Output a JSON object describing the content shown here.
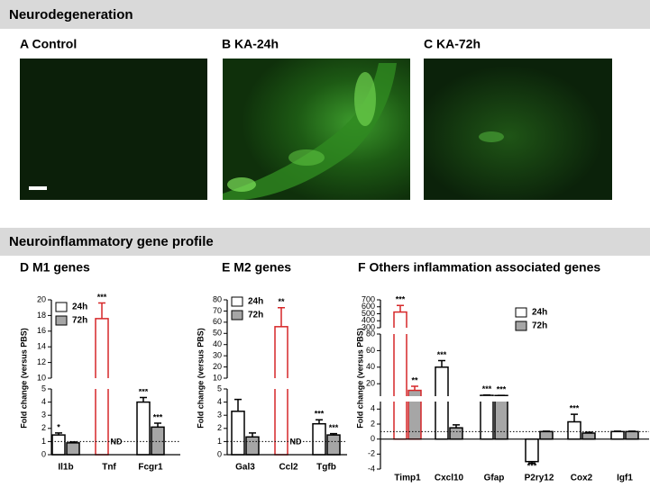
{
  "sections": [
    "Neurodegeneration",
    "Neuroinflammatory gene profile"
  ],
  "panels": [
    {
      "label": "A Control"
    },
    {
      "label": "B KA-24h"
    },
    {
      "label": "C KA-72h"
    }
  ],
  "chart_data": [
    {
      "type": "bar",
      "title": "D M1 genes",
      "ylabel": "Fold change (versus PBS)",
      "categories": [
        "Il1b",
        "Tnf",
        "Fcgr1"
      ],
      "series": [
        {
          "name": "24h",
          "color": "#ffffff",
          "edgecolors": [
            "#000000",
            "#d62728",
            "#000000"
          ],
          "values": [
            1.5,
            17.6,
            4.0
          ],
          "errors": [
            0.15,
            2.0,
            0.35
          ],
          "annotations": [
            "*",
            "***",
            "***"
          ]
        },
        {
          "name": "72h",
          "color": "#a6a6a6",
          "edgecolors": [
            "#000000",
            "#000000",
            "#000000"
          ],
          "values": [
            0.9,
            null,
            2.1
          ],
          "errors": [
            0.07,
            null,
            0.3
          ],
          "annotations": [
            null,
            "ND",
            "***"
          ]
        }
      ],
      "ylim": [
        0,
        20
      ],
      "ybreaks": [
        [
          5,
          10
        ]
      ],
      "yticks": [
        0,
        1,
        2,
        3,
        4,
        5,
        10,
        12,
        14,
        16,
        18,
        20
      ],
      "refline": 1,
      "legend": "upper left"
    },
    {
      "type": "bar",
      "title": "E M2 genes",
      "ylabel": "Fold change (versus PBS)",
      "categories": [
        "Gal3",
        "Ccl2",
        "Tgfb"
      ],
      "series": [
        {
          "name": "24h",
          "color": "#ffffff",
          "edgecolors": [
            "#000000",
            "#d62728",
            "#000000"
          ],
          "values": [
            3.3,
            56,
            2.35
          ],
          "errors": [
            0.9,
            17,
            0.3
          ],
          "annotations": [
            null,
            "**",
            "***"
          ]
        },
        {
          "name": "72h",
          "color": "#a6a6a6",
          "edgecolors": [
            "#000000",
            "#000000",
            "#000000"
          ],
          "values": [
            1.35,
            null,
            1.5
          ],
          "errors": [
            0.3,
            null,
            0.1
          ],
          "annotations": [
            null,
            "ND",
            "***"
          ]
        }
      ],
      "ylim": [
        0,
        80
      ],
      "ybreaks": [
        [
          5,
          10
        ]
      ],
      "yticks": [
        0,
        1,
        2,
        3,
        4,
        5,
        10,
        20,
        30,
        40,
        50,
        60,
        70,
        80
      ],
      "refline": 1,
      "legend": "upper left"
    },
    {
      "type": "bar",
      "title": "F Others inflammation associated genes",
      "ylabel": "Fold change (versus PBS)",
      "categories": [
        "Timp1",
        "Cxcl10",
        "Gfap",
        "P2ry12",
        "Cox2",
        "Igf1"
      ],
      "series": [
        {
          "name": "24h",
          "color": "#ffffff",
          "edgecolors": [
            "#d62728",
            "#000000",
            "#000000",
            "#000000",
            "#000000",
            "#000000"
          ],
          "values": [
            525,
            40,
            6,
            -3,
            2.3,
            1.0
          ],
          "errors": [
            95,
            8,
            0.3,
            0.2,
            1.0,
            0.05
          ],
          "annotations": [
            "***",
            "***",
            "***",
            "***",
            "***",
            null
          ]
        },
        {
          "name": "72h",
          "color": "#a6a6a6",
          "edgecolors": [
            "#d62728",
            "#000000",
            "#000000",
            "#000000",
            "#000000",
            "#000000"
          ],
          "values": [
            12,
            1.5,
            5.8,
            1.0,
            0.8,
            1.0
          ],
          "errors": [
            5,
            0.4,
            0.2,
            0.05,
            0.1,
            0.05
          ],
          "annotations": [
            "**",
            null,
            "***",
            null,
            null,
            null
          ]
        }
      ],
      "ylim": [
        -4,
        700
      ],
      "ybreaks": [
        [
          5,
          5
        ],
        [
          80,
          300
        ]
      ],
      "yticks": [
        -4,
        -2,
        0,
        2,
        4,
        20,
        40,
        60,
        80,
        300,
        400,
        500,
        600,
        700
      ],
      "refline": 1,
      "legend": "upper right"
    }
  ]
}
